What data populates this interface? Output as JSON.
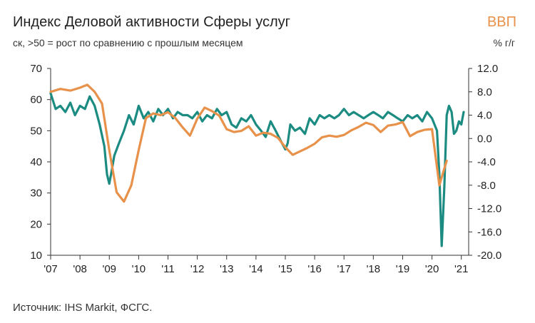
{
  "header": {
    "title": "Индекс Деловой активности Сферы услуг",
    "subtitle": "ск, >50 = рост по сравнению с прошлым месяцем",
    "right_title": "ВВП",
    "right_unit": "% г/г"
  },
  "footer": {
    "source": "Источник: IHS Markit, ФСГС."
  },
  "colors": {
    "pmi": "#1C8C82",
    "gdp": "#E8914A",
    "axis": "#333333"
  },
  "chart_data": {
    "type": "line",
    "xlim": [
      2007,
      2021.25
    ],
    "x_ticks": [
      "'07",
      "'08",
      "'09",
      "'10",
      "'11",
      "'12",
      "'13",
      "'14",
      "'15",
      "'16",
      "'17",
      "'18",
      "'19",
      "'20",
      "'21"
    ],
    "y_left": {
      "lim": [
        10,
        70
      ],
      "ticks": [
        "70",
        "60",
        "50",
        "40",
        "30",
        "20",
        "10"
      ]
    },
    "y_right": {
      "lim": [
        -20,
        12
      ],
      "ticks": [
        "12.0",
        "8.0",
        "4.0",
        "0.0",
        "-4.0",
        "-8.0",
        "-12.0",
        "-16.0",
        "-20.0"
      ]
    },
    "series": [
      {
        "axis": "left",
        "x": [
          2007.0,
          2007.17,
          2007.33,
          2007.5,
          2007.67,
          2007.83,
          2008.0,
          2008.17,
          2008.33,
          2008.5,
          2008.67,
          2008.83,
          2008.92,
          2009.0,
          2009.08,
          2009.17,
          2009.33,
          2009.5,
          2009.67,
          2009.83,
          2010.0,
          2010.17,
          2010.33,
          2010.5,
          2010.67,
          2010.83,
          2011.0,
          2011.17,
          2011.33,
          2011.5,
          2011.67,
          2011.83,
          2012.0,
          2012.17,
          2012.33,
          2012.5,
          2012.67,
          2012.83,
          2013.0,
          2013.17,
          2013.33,
          2013.5,
          2013.67,
          2013.83,
          2014.0,
          2014.17,
          2014.33,
          2014.5,
          2014.67,
          2014.83,
          2015.0,
          2015.08,
          2015.17,
          2015.33,
          2015.5,
          2015.67,
          2015.83,
          2016.0,
          2016.17,
          2016.33,
          2016.5,
          2016.67,
          2016.83,
          2017.0,
          2017.17,
          2017.33,
          2017.5,
          2017.67,
          2017.83,
          2018.0,
          2018.17,
          2018.33,
          2018.5,
          2018.67,
          2018.83,
          2019.0,
          2019.17,
          2019.33,
          2019.5,
          2019.67,
          2019.83,
          2020.0,
          2020.17,
          2020.25,
          2020.33,
          2020.42,
          2020.5,
          2020.58,
          2020.67,
          2020.75,
          2020.83,
          2020.92,
          2021.0,
          2021.08
        ],
        "values": [
          62,
          57,
          58,
          56,
          59,
          55,
          58,
          57,
          61,
          58,
          52,
          45,
          36,
          33,
          37,
          42,
          46,
          50,
          55,
          52,
          58,
          54,
          56,
          53,
          57,
          55,
          57,
          54,
          56,
          55,
          55,
          54,
          56,
          53,
          55,
          54,
          57,
          55,
          56,
          52,
          51,
          54,
          53,
          55,
          52,
          50,
          48,
          53,
          50,
          47,
          44,
          46,
          52,
          50,
          51,
          49,
          54,
          52,
          55,
          54,
          55,
          54,
          55,
          57,
          55,
          56,
          55,
          54,
          55,
          56,
          55,
          54,
          56,
          55,
          54,
          53,
          55,
          54,
          55,
          53,
          56,
          54,
          50,
          36,
          13,
          32,
          55,
          58,
          56,
          49,
          50,
          53,
          52,
          56
        ]
      },
      {
        "axis": "right",
        "x": [
          2007.0,
          2007.33,
          2007.67,
          2008.0,
          2008.25,
          2008.5,
          2008.75,
          2009.0,
          2009.25,
          2009.5,
          2009.75,
          2010.0,
          2010.25,
          2010.5,
          2010.75,
          2011.0,
          2011.25,
          2011.5,
          2011.75,
          2012.0,
          2012.25,
          2012.5,
          2012.75,
          2013.0,
          2013.25,
          2013.5,
          2013.75,
          2014.0,
          2014.25,
          2014.5,
          2014.75,
          2015.0,
          2015.25,
          2015.5,
          2015.75,
          2016.0,
          2016.25,
          2016.5,
          2016.75,
          2017.0,
          2017.25,
          2017.5,
          2017.75,
          2018.0,
          2018.25,
          2018.5,
          2018.75,
          2019.0,
          2019.25,
          2019.5,
          2019.75,
          2020.0,
          2020.25,
          2020.5,
          2020.75
        ],
        "values": [
          8.0,
          8.5,
          8.2,
          8.7,
          9.2,
          8.0,
          6.0,
          -2.0,
          -9.2,
          -10.8,
          -8.0,
          -2.0,
          3.5,
          4.3,
          4.0,
          4.5,
          3.5,
          1.9,
          0.5,
          3.4,
          5.3,
          4.7,
          3.9,
          1.6,
          1.1,
          1.3,
          2.1,
          0.5,
          1.0,
          0.8,
          0.1,
          -1.5,
          -2.8,
          -2.2,
          -1.6,
          -0.9,
          0.2,
          0.5,
          0.3,
          0.6,
          1.4,
          2.0,
          2.7,
          2.3,
          1.1,
          2.2,
          2.4,
          2.8,
          0.4,
          1.1,
          1.5,
          1.6,
          -8.0,
          -3.8,
          null
        ]
      }
    ]
  }
}
